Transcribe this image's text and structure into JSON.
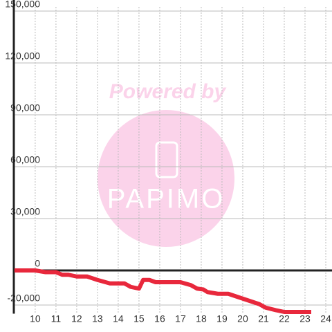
{
  "chart_data": {
    "type": "line",
    "x": [
      9,
      10,
      10.5,
      11,
      11.3,
      11.6,
      12,
      12.5,
      13,
      13.6,
      14.3,
      14.6,
      15,
      15.2,
      15.5,
      15.8,
      17,
      17.5,
      17.8,
      18.1,
      18.3,
      18.8,
      19.3,
      19.8,
      20.3,
      20.8,
      21.1,
      21.6,
      22,
      23.3
    ],
    "series": [
      {
        "color": "#e8283c",
        "values": [
          0,
          0,
          -1000,
          -1000,
          -2500,
          -2500,
          -3500,
          -3500,
          -5500,
          -7500,
          -7500,
          -9500,
          -10500,
          -5500,
          -5500,
          -6800,
          -6800,
          -8500,
          -10500,
          -11000,
          -12500,
          -13500,
          -13500,
          -15500,
          -17500,
          -19500,
          -21500,
          -23000,
          -24000,
          -24000
        ]
      }
    ],
    "xlim": [
      8.97,
      24.3
    ],
    "xticks": [
      10,
      11,
      12,
      13,
      14,
      15,
      16,
      17,
      18,
      19,
      20,
      21,
      22,
      23,
      24
    ],
    "ylim": [
      -25000,
      150000
    ],
    "yticks": [
      {
        "value": -20000,
        "label": "-20,000"
      },
      0,
      {
        "value": 30000,
        "label": "30,000"
      },
      {
        "value": 60000,
        "label": "60,000"
      },
      {
        "value": 90000,
        "label": "90,000"
      },
      {
        "value": 120000,
        "label": "120,000"
      },
      {
        "value": 150000,
        "label": "150,000"
      }
    ],
    "grid": true,
    "watermark": {
      "text": "Powered by",
      "logo": "PAPIMO"
    }
  }
}
